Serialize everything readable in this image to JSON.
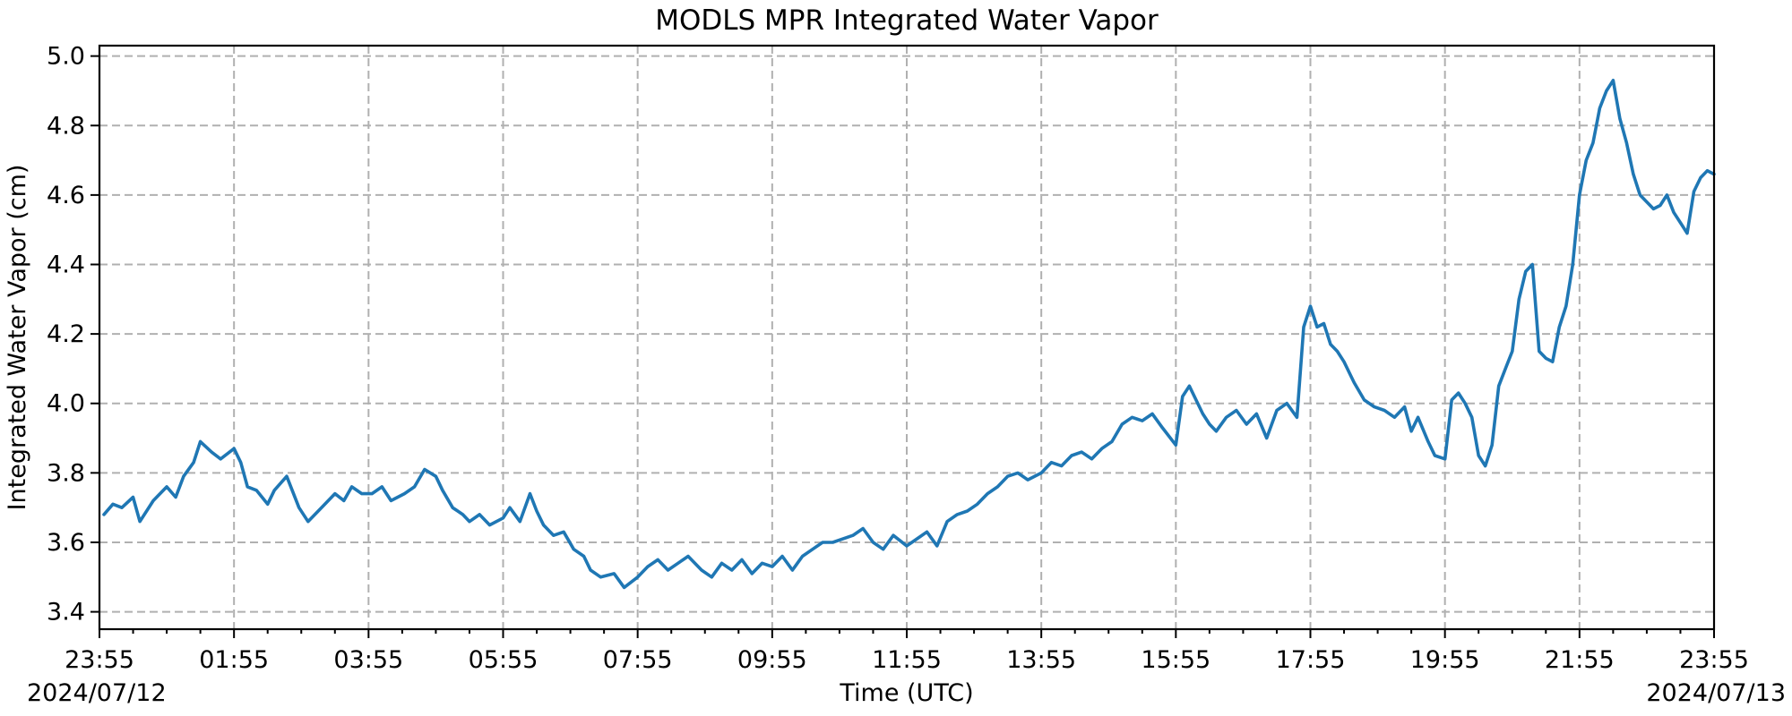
{
  "chart_data": {
    "type": "line",
    "title": "MODLS MPR Integrated Water Vapor",
    "xlabel": "Time (UTC)",
    "ylabel": "Integrated Water Vapor (cm)",
    "start_date_label": "2024/07/12",
    "end_date_label": "2024/07/13",
    "xlim": [
      "2024-07-12 23:55",
      "2024-07-13 23:55"
    ],
    "ylim": [
      3.35,
      5.03
    ],
    "x_tick_labels": [
      "23:55",
      "01:55",
      "03:55",
      "05:55",
      "07:55",
      "09:55",
      "11:55",
      "13:55",
      "15:55",
      "17:55",
      "19:55",
      "21:55",
      "23:55"
    ],
    "y_ticks": [
      3.4,
      3.6,
      3.8,
      4.0,
      4.2,
      4.4,
      4.6,
      4.8,
      5.0
    ],
    "y_tick_labels": [
      "3.4",
      "3.6",
      "3.8",
      "4.0",
      "4.2",
      "4.4",
      "4.6",
      "4.8",
      "5.0"
    ],
    "grid": true,
    "line_color": "#1f77b4",
    "series": [
      {
        "x": [
          "2024-07-12 23:59",
          "2024-07-13 00:07",
          "2024-07-13 00:15",
          "2024-07-13 00:25",
          "2024-07-13 00:31",
          "2024-07-13 00:43",
          "2024-07-13 00:55",
          "2024-07-13 01:03",
          "2024-07-13 01:10",
          "2024-07-13 01:19",
          "2024-07-13 01:25",
          "2024-07-13 01:35",
          "2024-07-13 01:43",
          "2024-07-13 01:55",
          "2024-07-13 02:01",
          "2024-07-13 02:07",
          "2024-07-13 02:15",
          "2024-07-13 02:25",
          "2024-07-13 02:31",
          "2024-07-13 02:42",
          "2024-07-13 02:53",
          "2024-07-13 03:01",
          "2024-07-13 03:13",
          "2024-07-13 03:25",
          "2024-07-13 03:33",
          "2024-07-13 03:40",
          "2024-07-13 03:49",
          "2024-07-13 03:58",
          "2024-07-13 04:07",
          "2024-07-13 04:15",
          "2024-07-13 04:27",
          "2024-07-13 04:36",
          "2024-07-13 04:45",
          "2024-07-13 04:55",
          "2024-07-13 05:01",
          "2024-07-13 05:10",
          "2024-07-13 05:19",
          "2024-07-13 05:25",
          "2024-07-13 05:34",
          "2024-07-13 05:43",
          "2024-07-13 05:55",
          "2024-07-13 06:01",
          "2024-07-13 06:10",
          "2024-07-13 06:19",
          "2024-07-13 06:25",
          "2024-07-13 06:31",
          "2024-07-13 06:40",
          "2024-07-13 06:49",
          "2024-07-13 06:58",
          "2024-07-13 07:07",
          "2024-07-13 07:13",
          "2024-07-13 07:22",
          "2024-07-13 07:34",
          "2024-07-13 07:43",
          "2024-07-13 07:55",
          "2024-07-13 08:04",
          "2024-07-13 08:13",
          "2024-07-13 08:22",
          "2024-07-13 08:31",
          "2024-07-13 08:40",
          "2024-07-13 08:52",
          "2024-07-13 09:01",
          "2024-07-13 09:10",
          "2024-07-13 09:19",
          "2024-07-13 09:28",
          "2024-07-13 09:37",
          "2024-07-13 09:46",
          "2024-07-13 09:55",
          "2024-07-13 10:04",
          "2024-07-13 10:13",
          "2024-07-13 10:22",
          "2024-07-13 10:31",
          "2024-07-13 10:40",
          "2024-07-13 10:49",
          "2024-07-13 10:58",
          "2024-07-13 11:07",
          "2024-07-13 11:16",
          "2024-07-13 11:25",
          "2024-07-13 11:34",
          "2024-07-13 11:43",
          "2024-07-13 11:55",
          "2024-07-13 12:04",
          "2024-07-13 12:13",
          "2024-07-13 12:22",
          "2024-07-13 12:31",
          "2024-07-13 12:40",
          "2024-07-13 12:49",
          "2024-07-13 12:58",
          "2024-07-13 13:07",
          "2024-07-13 13:16",
          "2024-07-13 13:25",
          "2024-07-13 13:34",
          "2024-07-13 13:43",
          "2024-07-13 13:55",
          "2024-07-13 14:04",
          "2024-07-13 14:13",
          "2024-07-13 14:22",
          "2024-07-13 14:31",
          "2024-07-13 14:40",
          "2024-07-13 14:49",
          "2024-07-13 14:58",
          "2024-07-13 15:07",
          "2024-07-13 15:16",
          "2024-07-13 15:25",
          "2024-07-13 15:34",
          "2024-07-13 15:43",
          "2024-07-13 15:55",
          "2024-07-13 16:01",
          "2024-07-13 16:07",
          "2024-07-13 16:13",
          "2024-07-13 16:19",
          "2024-07-13 16:25",
          "2024-07-13 16:31",
          "2024-07-13 16:40",
          "2024-07-13 16:49",
          "2024-07-13 16:58",
          "2024-07-13 17:07",
          "2024-07-13 17:16",
          "2024-07-13 17:25",
          "2024-07-13 17:34",
          "2024-07-13 17:43",
          "2024-07-13 17:49",
          "2024-07-13 17:55",
          "2024-07-13 18:01",
          "2024-07-13 18:07",
          "2024-07-13 18:13",
          "2024-07-13 18:19",
          "2024-07-13 18:25",
          "2024-07-13 18:34",
          "2024-07-13 18:43",
          "2024-07-13 18:52",
          "2024-07-13 19:01",
          "2024-07-13 19:10",
          "2024-07-13 19:19",
          "2024-07-13 19:25",
          "2024-07-13 19:31",
          "2024-07-13 19:40",
          "2024-07-13 19:46",
          "2024-07-13 19:55",
          "2024-07-13 20:01",
          "2024-07-13 20:07",
          "2024-07-13 20:13",
          "2024-07-13 20:19",
          "2024-07-13 20:25",
          "2024-07-13 20:31",
          "2024-07-13 20:37",
          "2024-07-13 20:43",
          "2024-07-13 20:49",
          "2024-07-13 20:55",
          "2024-07-13 21:01",
          "2024-07-13 21:07",
          "2024-07-13 21:13",
          "2024-07-13 21:19",
          "2024-07-13 21:25",
          "2024-07-13 21:31",
          "2024-07-13 21:37",
          "2024-07-13 21:43",
          "2024-07-13 21:49",
          "2024-07-13 21:55",
          "2024-07-13 22:01",
          "2024-07-13 22:07",
          "2024-07-13 22:13",
          "2024-07-13 22:19",
          "2024-07-13 22:25",
          "2024-07-13 22:31",
          "2024-07-13 22:37",
          "2024-07-13 22:43",
          "2024-07-13 22:49",
          "2024-07-13 22:55",
          "2024-07-13 23:01",
          "2024-07-13 23:07",
          "2024-07-13 23:13",
          "2024-07-13 23:19",
          "2024-07-13 23:25",
          "2024-07-13 23:31",
          "2024-07-13 23:37",
          "2024-07-13 23:43",
          "2024-07-13 23:49",
          "2024-07-13 23:55"
        ],
        "y": [
          3.68,
          3.71,
          3.7,
          3.73,
          3.66,
          3.72,
          3.76,
          3.73,
          3.79,
          3.83,
          3.89,
          3.86,
          3.84,
          3.87,
          3.83,
          3.76,
          3.75,
          3.71,
          3.75,
          3.79,
          3.7,
          3.66,
          3.7,
          3.74,
          3.72,
          3.76,
          3.74,
          3.74,
          3.76,
          3.72,
          3.74,
          3.76,
          3.81,
          3.79,
          3.75,
          3.7,
          3.68,
          3.66,
          3.68,
          3.65,
          3.67,
          3.7,
          3.66,
          3.74,
          3.69,
          3.65,
          3.62,
          3.63,
          3.58,
          3.56,
          3.52,
          3.5,
          3.51,
          3.47,
          3.5,
          3.53,
          3.55,
          3.52,
          3.54,
          3.56,
          3.52,
          3.5,
          3.54,
          3.52,
          3.55,
          3.51,
          3.54,
          3.53,
          3.56,
          3.52,
          3.56,
          3.58,
          3.6,
          3.6,
          3.61,
          3.62,
          3.64,
          3.6,
          3.58,
          3.62,
          3.59,
          3.61,
          3.63,
          3.59,
          3.66,
          3.68,
          3.69,
          3.71,
          3.74,
          3.76,
          3.79,
          3.8,
          3.78,
          3.8,
          3.83,
          3.82,
          3.85,
          3.86,
          3.84,
          3.87,
          3.89,
          3.94,
          3.96,
          3.95,
          3.97,
          3.93,
          3.88,
          4.02,
          4.05,
          4.01,
          3.97,
          3.94,
          3.92,
          3.96,
          3.98,
          3.94,
          3.97,
          3.9,
          3.98,
          4.0,
          3.96,
          4.22,
          4.28,
          4.22,
          4.23,
          4.17,
          4.15,
          4.12,
          4.06,
          4.01,
          3.99,
          3.98,
          3.96,
          3.99,
          3.92,
          3.96,
          3.89,
          3.85,
          3.84,
          4.01,
          4.03,
          4.0,
          3.96,
          3.85,
          3.82,
          3.88,
          4.05,
          4.1,
          4.15,
          4.3,
          4.38,
          4.4,
          4.15,
          4.13,
          4.12,
          4.22,
          4.28,
          4.4,
          4.6,
          4.7,
          4.75,
          4.85,
          4.9,
          4.93,
          4.82,
          4.75,
          4.66,
          4.6,
          4.58,
          4.56,
          4.57,
          4.6,
          4.55,
          4.52,
          4.49,
          4.61,
          4.65,
          4.67,
          4.66
        ]
      }
    ]
  }
}
